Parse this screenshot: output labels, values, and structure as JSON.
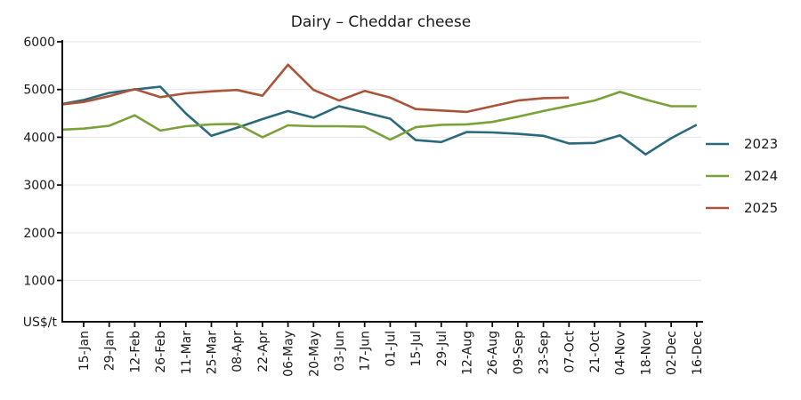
{
  "title": "Dairy – Cheddar cheese",
  "y_axis_unit_label": "US$/t",
  "colors": {
    "series_2023": "#2b6a7c",
    "series_2024": "#7ba23a",
    "series_2025": "#a9543b",
    "grid": "#ebebeb",
    "axis": "#111111",
    "text": "#1a1a1a"
  },
  "legend": [
    "2023",
    "2024",
    "2025"
  ],
  "chart_data": {
    "type": "line",
    "title": "Dairy – Cheddar cheese",
    "ylabel": "US$/t",
    "ylim": [
      0,
      6000
    ],
    "ytick_interval": 1000,
    "ytick_labels": [
      "6000",
      "5000",
      "4000",
      "3000",
      "2000",
      "1000"
    ],
    "grid": "horizontal",
    "legend_position": "right-outside",
    "categories": [
      "15-Jan",
      "29-Jan",
      "12-Feb",
      "26-Feb",
      "11-Mar",
      "25-Mar",
      "08-Apr",
      "22-Apr",
      "06-May",
      "20-May",
      "03-Jun",
      "17-Jun",
      "01-Jul",
      "15-Jul",
      "29-Jul",
      "12-Aug",
      "26-Aug",
      "09-Sep",
      "23-Sep",
      "07-Oct",
      "21-Oct",
      "04-Nov",
      "18-Nov",
      "02-Dec",
      "16-Dec"
    ],
    "series": [
      {
        "name": "2023",
        "color": "#2b6a7c",
        "axis_start_value": 4700,
        "values": [
          4780,
          4930,
          5000,
          5060,
          4500,
          4030,
          4200,
          4380,
          4550,
          4410,
          4650,
          4520,
          4390,
          3940,
          3900,
          4110,
          4100,
          4070,
          4030,
          3870,
          3880,
          4040,
          3640,
          3980,
          4260
        ]
      },
      {
        "name": "2024",
        "color": "#7ba23a",
        "axis_start_value": 4160,
        "values": [
          4180,
          4240,
          4460,
          4140,
          4230,
          4270,
          4280,
          4000,
          4250,
          4230,
          4230,
          4220,
          3950,
          4210,
          4260,
          4270,
          4320,
          4430,
          4550,
          4660,
          4770,
          4950,
          4790,
          4650,
          4650
        ]
      },
      {
        "name": "2025",
        "color": "#a9543b",
        "axis_start_value": 4690,
        "values": [
          4740,
          4860,
          5010,
          4840,
          4920,
          4960,
          4990,
          4870,
          5520,
          4990,
          4770,
          4970,
          4830,
          4590,
          4560,
          4530,
          4650,
          4770,
          4820,
          4830
        ]
      }
    ]
  }
}
